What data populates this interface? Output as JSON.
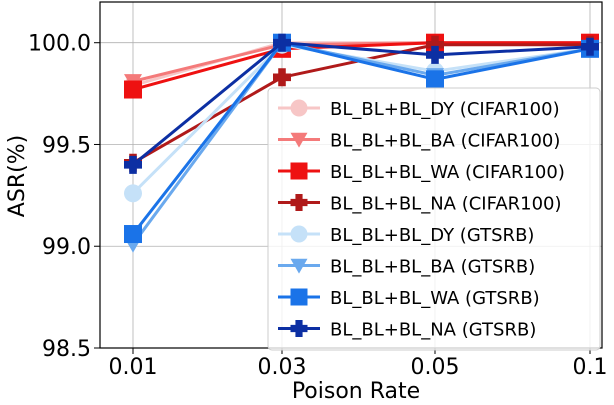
{
  "chart_data": {
    "type": "line",
    "xlabel": "Poison Rate",
    "ylabel": "ASR(%)",
    "categories": [
      "0.01",
      "0.03",
      "0.05",
      "0.1"
    ],
    "ylim": [
      98.5,
      100.2
    ],
    "yticks": [
      "98.5",
      "99.0",
      "99.5",
      "100.0"
    ],
    "grid": true,
    "legend_position": "center-right",
    "series": [
      {
        "name": "BL_BL+BL_DY (CIFAR100)",
        "values": [
          99.79,
          100.0,
          100.0,
          100.0
        ],
        "color": "#f7c6c6",
        "marker": "circle"
      },
      {
        "name": "BL_BL+BL_BA (CIFAR100)",
        "values": [
          99.81,
          99.99,
          100.0,
          100.0
        ],
        "color": "#f47a7a",
        "marker": "triangle-down"
      },
      {
        "name": "BL_BL+BL_WA (CIFAR100)",
        "values": [
          99.77,
          99.97,
          100.0,
          100.0
        ],
        "color": "#ee1111",
        "marker": "square"
      },
      {
        "name": "BL_BL+BL_NA (CIFAR100)",
        "values": [
          99.41,
          99.83,
          99.99,
          99.99
        ],
        "color": "#b01a1a",
        "marker": "plus"
      },
      {
        "name": "BL_BL+BL_DY (GTSRB)",
        "values": [
          99.26,
          99.99,
          99.86,
          99.97
        ],
        "color": "#c5e1f8",
        "marker": "circle"
      },
      {
        "name": "BL_BL+BL_BA (GTSRB)",
        "values": [
          99.01,
          100.0,
          99.84,
          99.97
        ],
        "color": "#6aa9ee",
        "marker": "triangle-down"
      },
      {
        "name": "BL_BL+BL_WA (GTSRB)",
        "values": [
          99.06,
          100.0,
          99.82,
          99.97
        ],
        "color": "#1a73e8",
        "marker": "square"
      },
      {
        "name": "BL_BL+BL_NA (GTSRB)",
        "values": [
          99.4,
          100.0,
          99.94,
          99.98
        ],
        "color": "#0c2fa3",
        "marker": "plus"
      }
    ]
  }
}
